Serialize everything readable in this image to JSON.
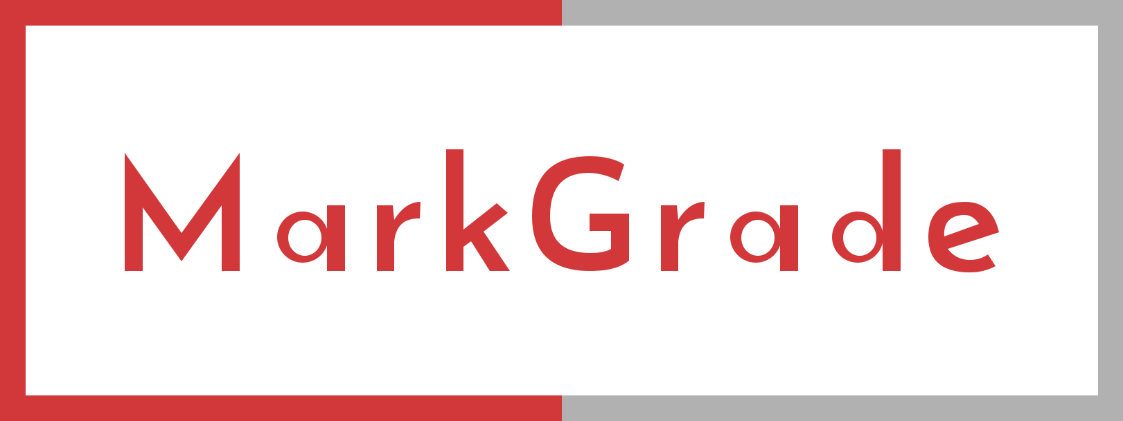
{
  "logo": {
    "wordmark": "MarkGrade",
    "colors": {
      "brand_red": "#d23739",
      "frame_gray": "#b1b1b1",
      "background": "#ffffff"
    }
  }
}
